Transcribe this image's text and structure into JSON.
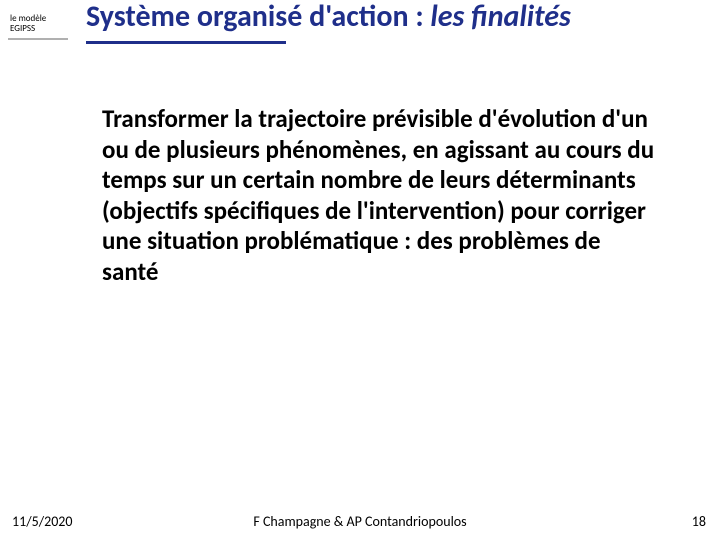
{
  "sidebar": {
    "line1": "le modèle",
    "line2": "EGIPSS"
  },
  "title": {
    "plain": "Système organisé d'action : ",
    "italic": "les finalités"
  },
  "body": {
    "text": "Transformer la trajectoire prévisible d'évolution d'un ou de plusieurs phénomènes, en agissant au cours du temps sur un certain nombre de leurs déterminants (objectifs spécifiques de l'intervention) pour corriger une situation problématique : des problèmes de santé"
  },
  "footer": {
    "date": "11/5/2020",
    "authors": "F Champagne & AP Contandriopoulos",
    "page": "18"
  },
  "colors": {
    "title": "#1f2f8a",
    "rule_gray": "#b0b0b0",
    "text": "#000000",
    "background": "#ffffff"
  }
}
